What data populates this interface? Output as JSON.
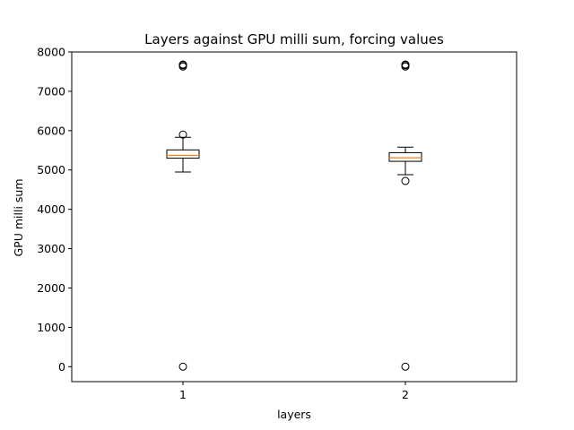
{
  "chart_data": {
    "type": "box",
    "title": "Layers against GPU milli sum, forcing values",
    "xlabel": "layers",
    "ylabel": "GPU milli sum",
    "ylim": [
      -380,
      8000
    ],
    "yticks": [
      0,
      1000,
      2000,
      3000,
      4000,
      5000,
      6000,
      7000,
      8000
    ],
    "xlim": [
      0.5,
      2.5
    ],
    "grid": false,
    "colors": {
      "box": "#000000",
      "median": "#ff7f0e",
      "outlier": "#000000"
    },
    "boxes": [
      {
        "label": "1",
        "position": 1,
        "whisker_low": 4950,
        "q1": 5300,
        "median": 5370,
        "q3": 5510,
        "whisker_high": 5830,
        "outliers": [
          0,
          5900,
          7630,
          7660,
          7680
        ]
      },
      {
        "label": "2",
        "position": 2,
        "whisker_low": 4880,
        "q1": 5220,
        "median": 5310,
        "q3": 5440,
        "whisker_high": 5580,
        "outliers": [
          0,
          4720,
          7630,
          7660,
          7680
        ]
      }
    ]
  }
}
